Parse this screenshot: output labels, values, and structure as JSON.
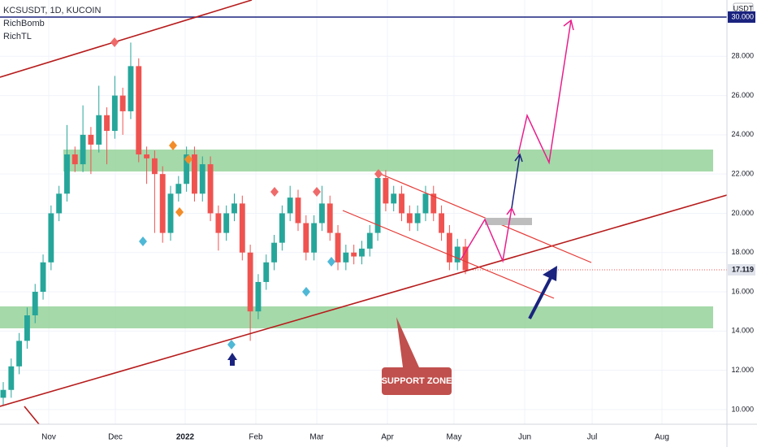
{
  "chart_data": {
    "type": "candlestick",
    "title": "KCSUSDT, 1D, KUCOIN",
    "indicators": [
      "RichBomb",
      "RichTL"
    ],
    "y_axis_label": "USDT",
    "annotation": "SUPPORT ZONE",
    "last_price": 17.119,
    "up_color": "#26a69a",
    "down_color": "#ef5350",
    "ylim": [
      9.25,
      30.87
    ],
    "yticks": [
      {
        "value": 10,
        "label": "10.000"
      },
      {
        "value": 12,
        "label": "12.000"
      },
      {
        "value": 14,
        "label": "14.000"
      },
      {
        "value": 16,
        "label": "16.000"
      },
      {
        "value": 18,
        "label": "18.000"
      },
      {
        "value": 20,
        "label": "20.000"
      },
      {
        "value": 22,
        "label": "22.000"
      },
      {
        "value": 24,
        "label": "24.000"
      },
      {
        "value": 26,
        "label": "26.000"
      },
      {
        "value": 28,
        "label": "28.000"
      },
      {
        "value": 30,
        "label": "30.000"
      }
    ],
    "x_labels": [
      "Nov",
      "Dec",
      "2022",
      "Feb",
      "Mar",
      "Apr",
      "May",
      "Jun",
      "Jul",
      "Aug"
    ],
    "open": [
      10.6,
      11.0,
      12.2,
      13.5,
      14.8,
      16.0,
      17.5,
      20.0,
      21.0,
      23.0,
      22.5,
      24.0,
      23.5,
      25.0,
      24.2,
      26.0,
      25.2,
      27.5,
      23.0,
      22.8,
      22.0,
      19.0,
      21.0,
      21.5,
      23.0,
      21.0,
      22.5,
      20.0,
      19.0,
      20.0,
      20.5,
      18.0,
      15.0,
      16.5,
      17.5,
      18.5,
      20.0,
      20.8,
      19.5,
      18.0,
      19.5,
      20.5,
      19.0,
      17.5,
      18.0,
      17.8,
      18.2,
      19.0,
      21.8,
      20.5,
      21.0,
      20.0,
      19.5,
      20.0,
      21.0,
      20.0,
      19.0,
      17.5,
      18.3
    ],
    "high": [
      11.4,
      12.6,
      13.9,
      15.2,
      16.4,
      17.9,
      20.4,
      21.4,
      24.5,
      23.4,
      25.5,
      24.4,
      26.5,
      25.4,
      27.0,
      26.4,
      28.7,
      27.9,
      23.4,
      23.2,
      22.4,
      21.4,
      21.9,
      23.4,
      23.4,
      22.9,
      22.9,
      20.4,
      20.4,
      21.0,
      20.9,
      18.4,
      16.9,
      17.9,
      18.9,
      20.4,
      21.4,
      21.2,
      19.9,
      19.9,
      21.4,
      20.9,
      19.4,
      18.4,
      18.4,
      18.6,
      19.4,
      22.2,
      22.2,
      21.4,
      21.4,
      20.4,
      20.4,
      21.4,
      21.4,
      20.4,
      19.4,
      18.7,
      18.7
    ],
    "low": [
      10.2,
      10.6,
      11.8,
      13.1,
      14.4,
      15.6,
      17.1,
      19.6,
      20.6,
      22.1,
      22.1,
      22.0,
      23.1,
      22.5,
      23.8,
      24.0,
      24.8,
      22.6,
      21.5,
      19.0,
      18.5,
      18.6,
      20.6,
      21.1,
      20.6,
      20.6,
      19.6,
      18.1,
      18.6,
      19.6,
      17.6,
      13.5,
      14.6,
      16.1,
      17.1,
      18.1,
      19.6,
      19.1,
      17.6,
      17.6,
      19.1,
      18.6,
      17.1,
      17.1,
      17.4,
      17.4,
      17.8,
      18.6,
      20.1,
      20.1,
      19.6,
      19.1,
      19.1,
      19.6,
      19.6,
      18.6,
      17.1,
      17.1,
      16.9
    ],
    "close": [
      11.0,
      12.2,
      13.5,
      14.8,
      16.0,
      17.5,
      20.0,
      21.0,
      23.0,
      22.5,
      24.0,
      23.5,
      25.0,
      24.2,
      26.0,
      25.2,
      27.5,
      23.0,
      22.8,
      22.0,
      19.0,
      21.0,
      21.5,
      23.0,
      21.0,
      22.5,
      20.0,
      19.0,
      20.0,
      20.5,
      18.0,
      15.0,
      16.5,
      17.5,
      18.5,
      20.0,
      20.8,
      19.5,
      18.0,
      19.5,
      20.5,
      19.0,
      17.5,
      18.0,
      17.8,
      18.2,
      19.0,
      21.8,
      20.5,
      21.0,
      20.0,
      19.5,
      20.0,
      21.0,
      20.0,
      19.0,
      17.5,
      18.3,
      17.1
    ]
  }
}
